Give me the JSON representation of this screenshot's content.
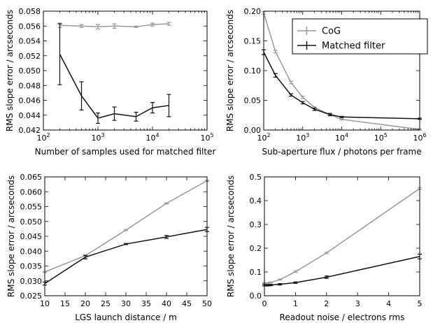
{
  "legend": {
    "series": [
      "CoG",
      "Matched filter"
    ],
    "colors": [
      "#999999",
      "#111111"
    ]
  },
  "chart_data": [
    {
      "type": "line",
      "xlabel": "Number of samples used for matched filter",
      "ylabel": "RMS slope error / arcseconds",
      "xscale": "log",
      "xlim": [
        100,
        100000
      ],
      "ylim": [
        0.042,
        0.058
      ],
      "xticks": [
        100,
        1000,
        10000,
        100000
      ],
      "xtick_labels": [
        [
          "10",
          "2"
        ],
        [
          "10",
          "3"
        ],
        [
          "10",
          "4"
        ],
        [
          "10",
          "5"
        ]
      ],
      "yticks": [
        0.042,
        0.044,
        0.046,
        0.048,
        0.05,
        0.052,
        0.054,
        0.056,
        0.058
      ],
      "ytick_labels": [
        "0.042",
        "0.044",
        "0.046",
        "0.048",
        "0.050",
        "0.052",
        "0.054",
        "0.056",
        "0.058"
      ],
      "series": [
        {
          "name": "CoG",
          "x": [
            200,
            500,
            1000,
            2000,
            5000,
            10000,
            20000
          ],
          "y": [
            0.0561,
            0.056,
            0.0559,
            0.056,
            0.0559,
            0.0562,
            0.0563
          ],
          "err": [
            0.0003,
            0.0002,
            0.0003,
            0.0003,
            0.0001,
            0.0002,
            0.0002
          ]
        },
        {
          "name": "Matched filter",
          "x": [
            200,
            500,
            1000,
            2000,
            5000,
            10000,
            20000
          ],
          "y": [
            0.0522,
            0.0466,
            0.0436,
            0.0442,
            0.0438,
            0.045,
            0.0453
          ],
          "err": [
            0.0041,
            0.0019,
            0.0007,
            0.0009,
            0.0006,
            0.0007,
            0.0015
          ]
        }
      ]
    },
    {
      "type": "line",
      "xlabel": "Sub-aperture flux / photons per frame",
      "ylabel": "RMS slope error / arcseconds",
      "xscale": "log",
      "xlim": [
        100,
        1000000
      ],
      "ylim": [
        0,
        0.2
      ],
      "xticks": [
        100,
        1000,
        10000,
        100000,
        1000000
      ],
      "xtick_labels": [
        [
          "10",
          "2"
        ],
        [
          "10",
          "3"
        ],
        [
          "10",
          "4"
        ],
        [
          "10",
          "5"
        ],
        [
          "10",
          "6"
        ]
      ],
      "yticks": [
        0,
        0.05,
        0.1,
        0.15,
        0.2
      ],
      "ytick_labels": [
        "0.00",
        "0.05",
        "0.10",
        "0.15",
        "0.20"
      ],
      "legend_position": "top-right",
      "series": [
        {
          "name": "CoG",
          "x": [
            100,
            200,
            500,
            1000,
            2000,
            5000,
            10000,
            1000000
          ],
          "y": [
            0.197,
            0.132,
            0.08,
            0.055,
            0.038,
            0.026,
            0.018,
            0.001
          ],
          "err": [
            0.002,
            0.002,
            0.002,
            0.002,
            0.001,
            0.001,
            0.001,
            0.001
          ]
        },
        {
          "name": "Matched filter",
          "x": [
            100,
            200,
            500,
            1000,
            2000,
            5000,
            10000,
            1000000
          ],
          "y": [
            0.131,
            0.092,
            0.059,
            0.046,
            0.035,
            0.026,
            0.022,
            0.019
          ],
          "err": [
            0.004,
            0.003,
            0.002,
            0.002,
            0.002,
            0.002,
            0.001,
            0.001
          ]
        }
      ]
    },
    {
      "type": "line",
      "xlabel": "LGS launch distance / m",
      "ylabel": "RMS slope error / arcseconds",
      "xscale": "linear",
      "xlim": [
        10,
        50
      ],
      "ylim": [
        0.025,
        0.065
      ],
      "xticks": [
        10,
        15,
        20,
        25,
        30,
        35,
        40,
        45,
        50
      ],
      "xtick_labels": [
        "10",
        "15",
        "20",
        "25",
        "30",
        "35",
        "40",
        "45",
        "50"
      ],
      "yticks": [
        0.025,
        0.03,
        0.035,
        0.04,
        0.045,
        0.05,
        0.055,
        0.06,
        0.065
      ],
      "ytick_labels": [
        "0.025",
        "0.030",
        "0.035",
        "0.040",
        "0.045",
        "0.050",
        "0.055",
        "0.060",
        "0.065"
      ],
      "series": [
        {
          "name": "CoG",
          "x": [
            10,
            20,
            30,
            40,
            50
          ],
          "y": [
            0.033,
            0.0385,
            0.0471,
            0.0561,
            0.0637
          ],
          "err": [
            0.0002,
            0.0002,
            0.0002,
            0.0002,
            0.0002
          ]
        },
        {
          "name": "Matched filter",
          "x": [
            10,
            20,
            30,
            40,
            50
          ],
          "y": [
            0.0291,
            0.038,
            0.0424,
            0.0448,
            0.0473
          ],
          "err": [
            0.0005,
            0.0006,
            0.0002,
            0.0005,
            0.0007
          ]
        }
      ]
    },
    {
      "type": "line",
      "xlabel": "Readout noise / electrons rms",
      "ylabel": "RMS slope error / arcseconds",
      "xscale": "linear",
      "xlim": [
        0,
        5
      ],
      "ylim": [
        0,
        0.5
      ],
      "xticks": [
        0,
        1,
        2,
        3,
        4,
        5
      ],
      "xtick_labels": [
        "0",
        "1",
        "2",
        "3",
        "4",
        "5"
      ],
      "yticks": [
        0,
        0.1,
        0.2,
        0.3,
        0.4,
        0.5
      ],
      "ytick_labels": [
        "0.0",
        "0.1",
        "0.2",
        "0.3",
        "0.4",
        "0.5"
      ],
      "series": [
        {
          "name": "CoG",
          "x": [
            0,
            0.1,
            0.2,
            0.5,
            1,
            2,
            5
          ],
          "y": [
            0.053,
            0.053,
            0.056,
            0.068,
            0.101,
            0.18,
            0.451
          ],
          "err": [
            0.002,
            0.002,
            0.002,
            0.002,
            0.003,
            0.003,
            0.004
          ]
        },
        {
          "name": "Matched filter",
          "x": [
            0,
            0.1,
            0.2,
            0.5,
            1,
            2,
            5
          ],
          "y": [
            0.044,
            0.044,
            0.045,
            0.048,
            0.055,
            0.078,
            0.165
          ],
          "err": [
            0.003,
            0.003,
            0.003,
            0.003,
            0.003,
            0.005,
            0.01
          ]
        }
      ]
    }
  ]
}
